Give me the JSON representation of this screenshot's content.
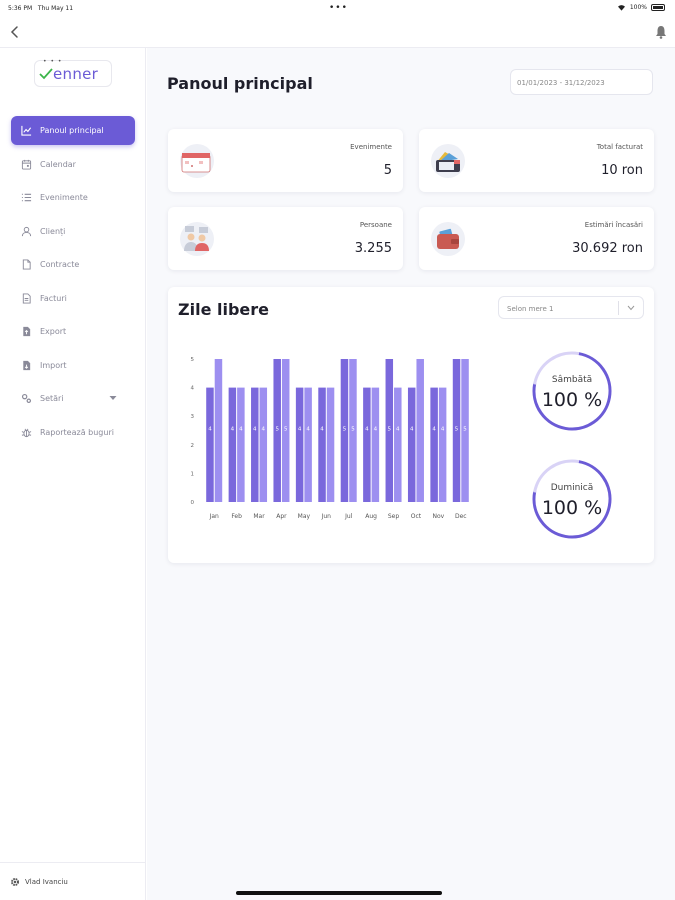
{
  "status": {
    "time": "5:36 PM",
    "date": "Thu May 11",
    "battery": "100%"
  },
  "logo": {
    "text": "enner"
  },
  "sidebar": {
    "items": [
      {
        "label": "Panoul principal",
        "icon": "chart-line-icon",
        "active": true
      },
      {
        "label": "Calendar",
        "icon": "calendar-icon"
      },
      {
        "label": "Evenimente",
        "icon": "list-icon"
      },
      {
        "label": "Clienți",
        "icon": "user-icon"
      },
      {
        "label": "Contracte",
        "icon": "document-icon"
      },
      {
        "label": "Facturi",
        "icon": "invoice-icon"
      },
      {
        "label": "Export",
        "icon": "export-icon"
      },
      {
        "label": "Import",
        "icon": "import-icon"
      },
      {
        "label": "Setări",
        "icon": "gears-icon",
        "has_children": true
      },
      {
        "label": "Raportează buguri",
        "icon": "bug-icon"
      }
    ],
    "user": "Vlad Ivanciu"
  },
  "header": {
    "title": "Panoul principal",
    "date_range": "01/01/2023 - 31/12/2023"
  },
  "stats": [
    {
      "label": "Evenimente",
      "value": "5"
    },
    {
      "label": "Total facturat",
      "value": "10 ron"
    },
    {
      "label": "Persoane",
      "value": "3.255"
    },
    {
      "label": "Estimări încasări",
      "value": "30.692 ron"
    }
  ],
  "holidays": {
    "title": "Zile libere",
    "select_placeholder": "Selon mere 1",
    "gauges": [
      {
        "label": "Sâmbătă",
        "value": "100 %"
      },
      {
        "label": "Duminică",
        "value": "100 %"
      }
    ]
  },
  "chart_data": {
    "type": "bar",
    "categories": [
      "Jan",
      "Feb",
      "Mar",
      "Apr",
      "May",
      "Jun",
      "Jul",
      "Aug",
      "Sep",
      "Oct",
      "Nov",
      "Dec"
    ],
    "series": [
      {
        "values": [
          4,
          4,
          4,
          5,
          4,
          4,
          5,
          4,
          5,
          4,
          4,
          5
        ]
      },
      {
        "values": [
          5,
          4,
          4,
          5,
          4,
          4,
          5,
          4,
          4,
          5,
          4,
          5
        ]
      }
    ],
    "bar_labels": [
      [
        "4",
        "4",
        "4",
        "5",
        "4",
        "4",
        "5",
        "4",
        "5",
        "4",
        "4",
        "5"
      ],
      [
        "",
        "4",
        "4",
        "5",
        "4",
        "",
        "5",
        "4",
        "4",
        "",
        "4",
        "5"
      ]
    ],
    "ylim": [
      0,
      5
    ],
    "yticks": [
      "0",
      "1",
      "2",
      "3",
      "4",
      "5"
    ],
    "colors": [
      "#7a68dc",
      "#9d8ff0"
    ],
    "grid": false
  }
}
